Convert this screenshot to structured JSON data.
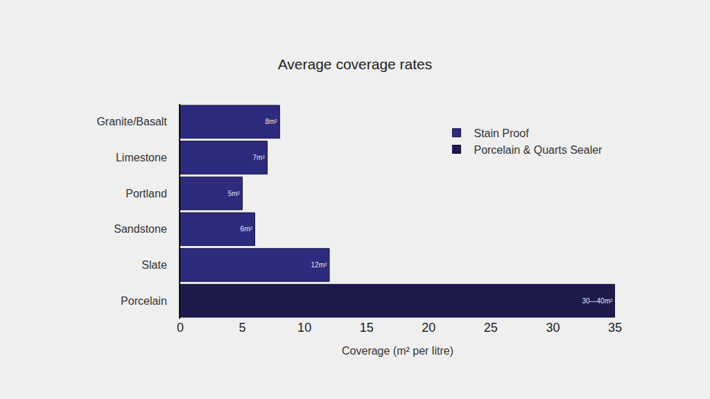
{
  "chart_data": {
    "type": "bar",
    "orientation": "horizontal",
    "title": "Average coverage rates",
    "x_label": "Coverage (m² per litre)",
    "categories": [
      "Granite/Basalt",
      "Limestone",
      "Portland",
      "Sandstone",
      "Slate",
      "Porcelain"
    ],
    "series": [
      {
        "name": "Stain Proof",
        "color": "#2d2b7e",
        "values": [
          8,
          7,
          5,
          6,
          12,
          null
        ],
        "value_labels": [
          "8m²",
          "7m²",
          "5m²",
          "6m²",
          "12m²",
          null
        ]
      },
      {
        "name": "Porcelain & Quarts Sealer",
        "color": "#1e1a4b",
        "values": [
          null,
          null,
          null,
          null,
          null,
          35
        ],
        "value_labels": [
          null,
          null,
          null,
          null,
          null,
          "30—40m²"
        ]
      }
    ],
    "xlim": [
      0,
      35
    ],
    "xticks": [
      0,
      5,
      10,
      15,
      20,
      25,
      30,
      35
    ],
    "grid": false,
    "legend": "top right",
    "data_labels": true
  }
}
